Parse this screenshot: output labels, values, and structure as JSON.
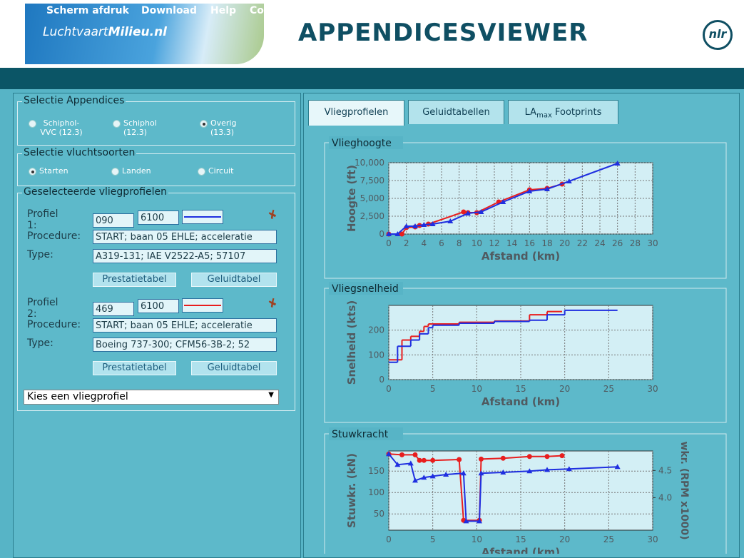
{
  "header": {
    "logo_a": "Luchtvaart",
    "logo_b": "Milieu.nl",
    "title": "APPENDICESVIEWER",
    "logo_right": "nlr"
  },
  "nav": [
    "Scherm afdruk",
    "Download",
    "Help",
    "Contact"
  ],
  "appendices": {
    "legend": "Selectie Appendices",
    "options": [
      "Schiphol-VVC (12.3)",
      "Schiphol (12.3)",
      "Overig (13.3)"
    ],
    "checked": 2
  },
  "flighttypes": {
    "legend": "Selectie vluchtsoorten",
    "options": [
      "Starten",
      "Landen",
      "Circuit"
    ],
    "checked": 0
  },
  "profiles": {
    "legend": "Geselecteerde vliegprofielen",
    "items": [
      {
        "label": "Profiel 1:",
        "code": "090",
        "weight": "6100",
        "color": "#1f2fe0",
        "procedure_label": "Procedure:",
        "procedure": "START; baan 05 EHLE; acceleratie",
        "type_label": "Type:",
        "type": "A319-131; IAE V2522-A5; 57107",
        "buttons": [
          "Prestatietabel",
          "Geluidtabel"
        ]
      },
      {
        "label": "Profiel 2:",
        "code": "469",
        "weight": "6100",
        "color": "#e81e1e",
        "procedure_label": "Procedure:",
        "procedure": "START; baan 05 EHLE; acceleratie",
        "type_label": "Type:",
        "type": "Boeing 737-300; CFM56-3B-2; 52",
        "buttons": [
          "Prestatietabel",
          "Geluidtabel"
        ]
      }
    ],
    "select": "Kies een vliegprofiel"
  },
  "tabs": [
    {
      "text": "Vliegprofielen"
    },
    {
      "text": "Geluidtabellen"
    },
    {
      "text": "LA",
      "sub": "max",
      "rest": " Footprints"
    }
  ],
  "charts": [
    {
      "type": "line",
      "title": "Vlieghoogte",
      "xlabel": "Afstand (km)",
      "ylabel": "Hoogte (ft)",
      "xlim": [
        0,
        30
      ],
      "xticks": [
        0,
        2,
        4,
        6,
        8,
        10,
        12,
        14,
        16,
        18,
        20,
        22,
        24,
        26,
        28,
        30
      ],
      "ylim": [
        0,
        10000
      ],
      "yticks": [
        0,
        {
          "value": 2500,
          "label": "2,500"
        },
        {
          "value": 5000,
          "label": "5,000"
        },
        {
          "value": 7500,
          "label": "7,500"
        },
        {
          "value": 10000,
          "label": "10,000"
        }
      ],
      "grid": true,
      "series": [
        {
          "color": "#e81e1e",
          "marker": "circle",
          "x": [
            0,
            1.5,
            2,
            3,
            3.5,
            4.5,
            8.5,
            9,
            10,
            12.5,
            16,
            18,
            19.7
          ],
          "values": [
            0,
            0,
            900,
            1000,
            1200,
            1400,
            3100,
            3000,
            3000,
            4500,
            6200,
            6400,
            7000
          ]
        },
        {
          "color": "#1f2fe0",
          "marker": "triangle",
          "x": [
            0,
            1,
            2,
            3,
            4,
            5,
            7,
            9,
            10.5,
            13,
            16,
            18,
            20.5,
            26
          ],
          "values": [
            0,
            0,
            1100,
            1100,
            1300,
            1400,
            1800,
            2900,
            3100,
            4500,
            6000,
            6300,
            7400,
            9900
          ]
        }
      ]
    },
    {
      "type": "step",
      "title": "Vliegsnelheid",
      "xlabel": "Afstand (km)",
      "ylabel": "Snelheid (kts)",
      "xlim": [
        0,
        30
      ],
      "xticks": [
        0,
        5,
        10,
        15,
        20,
        25,
        30
      ],
      "ylim": [
        0,
        300
      ],
      "yticks": [
        0,
        100,
        200
      ],
      "grid": true,
      "series": [
        {
          "color": "#e81e1e",
          "x": [
            0,
            1.5,
            2.5,
            3.5,
            4,
            4.5,
            5,
            8,
            12,
            16,
            18,
            19.7
          ],
          "values": [
            80,
            160,
            175,
            195,
            215,
            225,
            225,
            232,
            237,
            262,
            275,
            275
          ]
        },
        {
          "color": "#1f2fe0",
          "x": [
            0,
            1,
            2.5,
            3.5,
            4.5,
            5,
            8,
            12,
            16,
            18,
            20,
            26
          ],
          "values": [
            70,
            135,
            160,
            185,
            210,
            220,
            228,
            235,
            240,
            262,
            280,
            280
          ]
        }
      ]
    },
    {
      "type": "line",
      "title": "Stuwkracht",
      "xlabel": "Afstand (km)",
      "ylabel": "Stuwkr. (kN)",
      "y2label": "wkr. (RPM x1000)",
      "xlim": [
        0,
        30
      ],
      "xticks": [
        0,
        5,
        10,
        15,
        20,
        25,
        30
      ],
      "ylim": [
        12,
        197
      ],
      "yticks": [
        50,
        100,
        150
      ],
      "y2lim": [
        3.4,
        4.86
      ],
      "y2ticks": [
        {
          "value": 4,
          "label": "4.0"
        },
        4.5
      ],
      "grid": true,
      "series": [
        {
          "color": "#e81e1e",
          "marker": "circle",
          "x": [
            0,
            1.5,
            3,
            3.5,
            4,
            5,
            8,
            8.5,
            10.3,
            10.5,
            13,
            16,
            18,
            19.7
          ],
          "values": [
            190,
            188,
            188,
            175,
            175,
            175,
            177,
            35,
            35,
            178,
            180,
            184,
            184,
            186
          ]
        },
        {
          "color": "#1f2fe0",
          "marker": "triangle",
          "x": [
            0,
            1,
            2.5,
            3,
            4,
            5,
            6.5,
            8.5,
            8.8,
            10.3,
            10.5,
            13,
            16,
            18,
            20.5,
            26
          ],
          "values": [
            190,
            165,
            168,
            128,
            135,
            138,
            142,
            145,
            33,
            33,
            145,
            147,
            150,
            153,
            155,
            160
          ]
        }
      ]
    }
  ]
}
